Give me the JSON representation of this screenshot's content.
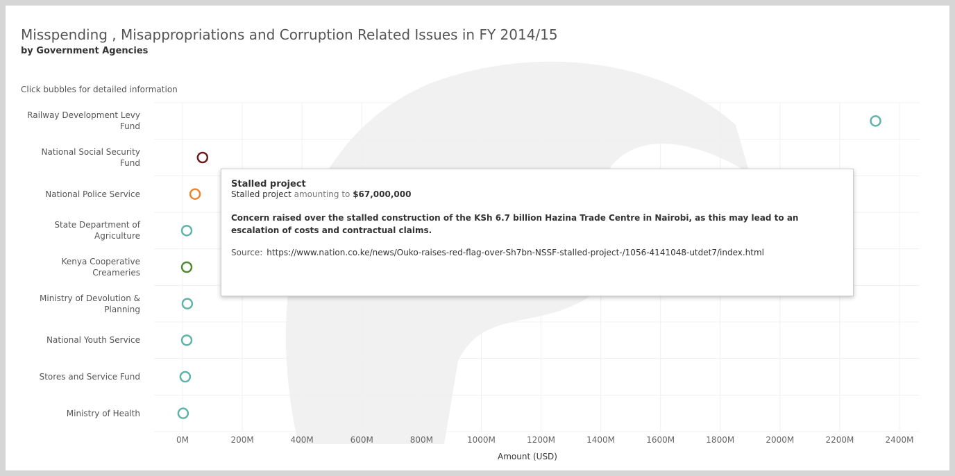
{
  "chart_data": {
    "type": "dot",
    "title": "Misspending , Misappropriations and Corruption Related Issues in FY 2014/15",
    "subtitle": "by Government Agencies",
    "note": "Click bubbles for detailed information",
    "x_label": "Amount (USD)",
    "categories": [
      "Railway Development Levy Fund",
      "National Social Security Fund",
      "National Police Service",
      "State Department of Agriculture",
      "Kenya Cooperative Creameries",
      "Ministry of Devolution & Planning",
      "National Youth Service",
      "Stores and Service Fund",
      "Ministry of Health"
    ],
    "values": [
      2320000000,
      67000000,
      42000000,
      14000000,
      14000000,
      16000000,
      14000000,
      9000000,
      2000000
    ],
    "colors": [
      "#5fb3a8",
      "#6b1a1a",
      "#e8852e",
      "#5fb3a8",
      "#4e8a2e",
      "#5fb3a8",
      "#5fb3a8",
      "#5fb3a8",
      "#5fb3a8"
    ],
    "xlim": [
      0,
      2400000000
    ],
    "xticks": [
      {
        "value": 0,
        "label": "0M"
      },
      {
        "value": 200000000,
        "label": "200M"
      },
      {
        "value": 400000000,
        "label": "400M"
      },
      {
        "value": 600000000,
        "label": "600M"
      },
      {
        "value": 800000000,
        "label": "800M"
      },
      {
        "value": 1000000000,
        "label": "1000M"
      },
      {
        "value": 1200000000,
        "label": "1200M"
      },
      {
        "value": 1400000000,
        "label": "1400M"
      },
      {
        "value": 1600000000,
        "label": "1600M"
      },
      {
        "value": 1800000000,
        "label": "1800M"
      },
      {
        "value": 2000000000,
        "label": "2000M"
      },
      {
        "value": 2200000000,
        "label": "2200M"
      },
      {
        "value": 2400000000,
        "label": "2400M"
      }
    ],
    "grid": true,
    "tooltip": {
      "title": "Stalled project",
      "lead": "Stalled project",
      "mid": "amounting to",
      "amount": "$67,000,000",
      "description": "Concern raised over the stalled construction of the KSh 6.7 billion Hazina Trade Centre in Nairobi, as this may lead to an escalation of costs and contractual claims.",
      "source_label": "Source:",
      "source_url": "https://www.nation.co.ke/news/Ouko-raises-red-flag-over-Sh7bn-NSSF-stalled-project-/1056-4141048-utdet7/index.html"
    }
  }
}
